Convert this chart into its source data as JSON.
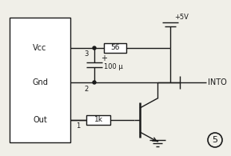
{
  "bg_color": "#f0efe8",
  "line_color": "#1a1a1a",
  "text_color": "#1a1a1a",
  "fig_width": 2.89,
  "fig_height": 1.95,
  "dpi": 100,
  "labels": {
    "vcc": "Vcc",
    "gnd": "Gnd",
    "out": "Out",
    "pin3": "3",
    "pin2": "2",
    "pin1": "1",
    "r1": "56",
    "r2": "1k",
    "cap": "100 μ",
    "cap_plus": "+",
    "vcc_label": "+5V",
    "into": "INTO",
    "circle_num": "5"
  }
}
